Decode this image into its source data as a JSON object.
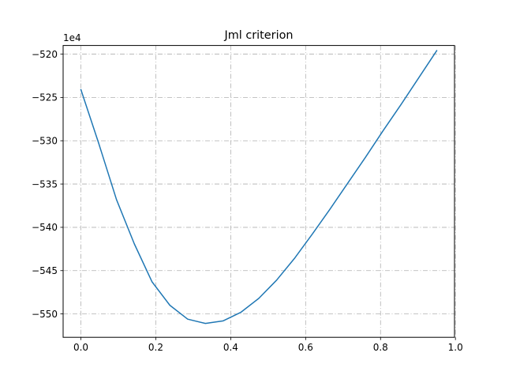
{
  "chart_data": {
    "type": "line",
    "title": "Jml criterion",
    "xlabel": "",
    "ylabel": "",
    "y_offset_label": "1e4",
    "xlim": [
      -0.0475,
      0.9975
    ],
    "ylim": [
      -552.7,
      -519.0
    ],
    "x_ticks": [
      0.0,
      0.2,
      0.4,
      0.6,
      0.8,
      1.0
    ],
    "x_tick_labels": [
      "0.0",
      "0.2",
      "0.4",
      "0.6",
      "0.8",
      "1.0"
    ],
    "y_ticks": [
      -550,
      -545,
      -540,
      -535,
      -530,
      -525,
      -520
    ],
    "y_tick_labels": [
      "−550",
      "−545",
      "−540",
      "−535",
      "−530",
      "−525",
      "−520"
    ],
    "grid": true,
    "line_color": "#1f77b4",
    "series": [
      {
        "x": [
          0.0,
          0.0475,
          0.095,
          0.1425,
          0.19,
          0.2375,
          0.285,
          0.3325,
          0.38,
          0.4275,
          0.475,
          0.5225,
          0.57,
          0.6175,
          0.665,
          0.7125,
          0.76,
          0.8075,
          0.855,
          0.9025,
          0.95
        ],
        "values": [
          -524.1,
          -530.3,
          -536.8,
          -541.9,
          -546.3,
          -549.0,
          -550.6,
          -551.1,
          -550.8,
          -549.8,
          -548.2,
          -546.1,
          -543.6,
          -540.8,
          -537.9,
          -534.9,
          -531.9,
          -528.8,
          -525.8,
          -522.7,
          -519.6
        ]
      }
    ]
  }
}
